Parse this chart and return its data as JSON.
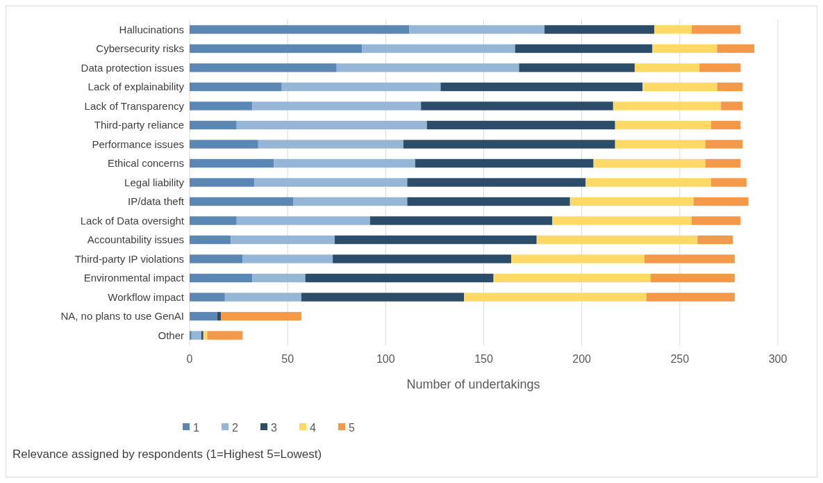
{
  "chart_data": {
    "type": "bar",
    "orientation": "horizontal",
    "stacked": true,
    "xlabel": "Number of undertakings",
    "categories": [
      "Hallucinations",
      "Cybersecurity risks",
      "Data protection issues",
      "Lack of explainability",
      "Lack of Transparency",
      "Third-party reliance",
      "Performance issues",
      "Ethical concerns",
      "Legal liability",
      "IP/data theft",
      "Lack of Data oversight",
      "Accountability issues",
      "Third-party IP violations",
      "Environmental impact",
      "Workflow impact",
      "NA, no plans to use GenAI",
      "Other"
    ],
    "series": [
      {
        "name": "1",
        "color": "#5b87b4",
        "values": [
          112,
          88,
          75,
          47,
          32,
          24,
          35,
          43,
          33,
          53,
          24,
          21,
          27,
          32,
          18,
          14,
          1
        ]
      },
      {
        "name": "2",
        "color": "#96b6d7",
        "values": [
          69,
          78,
          93,
          81,
          86,
          97,
          74,
          72,
          78,
          58,
          68,
          53,
          46,
          27,
          39,
          0,
          5
        ]
      },
      {
        "name": "3",
        "color": "#2c4d6a",
        "values": [
          56,
          70,
          59,
          103,
          98,
          96,
          108,
          91,
          91,
          83,
          93,
          103,
          91,
          96,
          83,
          2,
          1
        ]
      },
      {
        "name": "4",
        "color": "#fed966",
        "values": [
          19,
          33,
          33,
          38,
          55,
          49,
          46,
          57,
          64,
          63,
          71,
          82,
          68,
          80,
          93,
          0,
          2
        ]
      },
      {
        "name": "5",
        "color": "#f4994a",
        "values": [
          25,
          19,
          21,
          13,
          11,
          15,
          19,
          18,
          18,
          28,
          25,
          18,
          46,
          43,
          45,
          41,
          18
        ]
      }
    ],
    "xlim": [
      0,
      300
    ],
    "xticks": [
      0,
      50,
      100,
      150,
      200,
      250,
      300
    ],
    "grid": "x",
    "legend": "bottom",
    "annotations": [
      "Relevance assigned by respondents (1=Highest 5=Lowest)"
    ]
  }
}
